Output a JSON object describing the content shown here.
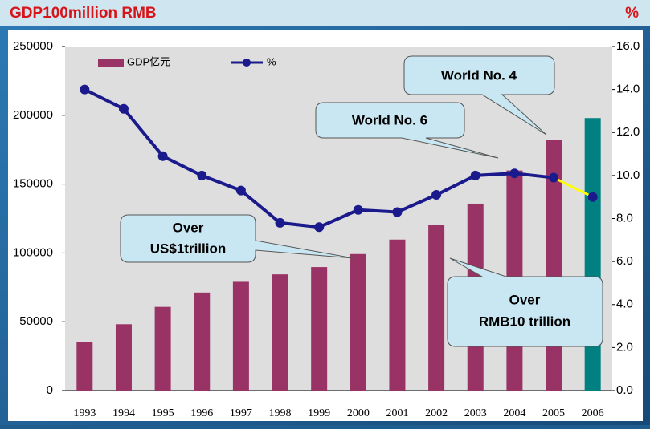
{
  "chart_data": {
    "type": "bar_line",
    "title": "GDP100million RMB",
    "y2_title": "%",
    "categories": [
      "1993",
      "1994",
      "1995",
      "1996",
      "1997",
      "1998",
      "1999",
      "2000",
      "2001",
      "2002",
      "2003",
      "2004",
      "2005",
      "2006"
    ],
    "series": [
      {
        "name": "GDP亿元",
        "type": "bar",
        "color": "#993366",
        "highlight_color": "#008080",
        "values": [
          35300,
          48200,
          60800,
          71200,
          79000,
          84400,
          89700,
          99200,
          109700,
          120300,
          135800,
          159900,
          182300,
          198000
        ]
      },
      {
        "name": "%",
        "type": "line",
        "axis": "y2",
        "color": "#1a1a8c",
        "highlight_color": "#ffff00",
        "values": [
          14.0,
          13.1,
          10.9,
          10.0,
          9.3,
          7.8,
          7.6,
          8.4,
          8.3,
          9.1,
          10.0,
          10.1,
          9.9,
          9.0
        ]
      }
    ],
    "ylim": [
      0,
      250000
    ],
    "yticks": [
      0,
      50000,
      100000,
      150000,
      200000,
      250000
    ],
    "y2lim": [
      0,
      16
    ],
    "y2ticks": [
      {
        "value": 0,
        "label": "0.0"
      },
      {
        "value": 2,
        "label": "2.0"
      },
      {
        "value": 4,
        "label": "4.0"
      },
      {
        "value": 6,
        "label": "6.0"
      },
      {
        "value": 8,
        "label": "8.0"
      },
      {
        "value": 10,
        "label": "10.0"
      },
      {
        "value": 12,
        "label": "12.0"
      },
      {
        "value": 14,
        "label": "14.0"
      },
      {
        "value": 16,
        "label": "16.0"
      }
    ],
    "legend": "top-left",
    "annotations": [
      {
        "lines": [
          "World No. 4"
        ]
      },
      {
        "lines": [
          "World No. 6"
        ]
      },
      {
        "lines": [
          "Over",
          "US$1trillion"
        ]
      },
      {
        "lines": [
          "Over",
          "RMB10 trillion"
        ]
      }
    ]
  }
}
